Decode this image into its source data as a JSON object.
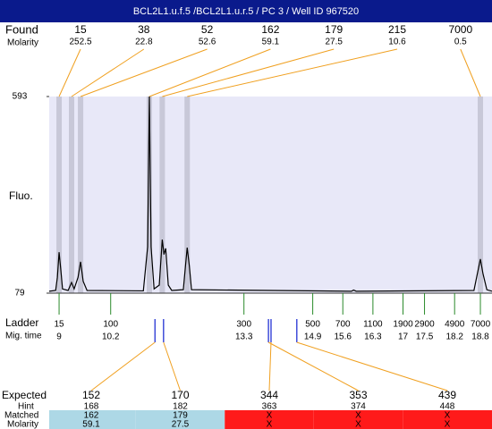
{
  "title": "BCL2L1.u.f.5 /BCL2L1.u.r.5 / PC 3 / Well ID 967520",
  "found": {
    "label": "Found",
    "molarity_label": "Molarity",
    "peaks": [
      {
        "size": 15,
        "molarity": 252.5,
        "time": 9.0
      },
      {
        "size": 38,
        "molarity": 22.8,
        "time": 9.29
      },
      {
        "size": 52,
        "molarity": 52.6,
        "time": 9.5
      },
      {
        "size": 162,
        "molarity": 59.1,
        "time": 11.1
      },
      {
        "size": 179,
        "molarity": 27.5,
        "time": 11.4
      },
      {
        "size": 215,
        "molarity": 10.6,
        "time": 11.98
      },
      {
        "size": 7000,
        "molarity": 0.5,
        "time": 18.8
      }
    ]
  },
  "chart_data": {
    "type": "line",
    "y_label": "Fluo.",
    "color": "#000000",
    "x": [
      8.77,
      8.92,
      8.96,
      9.0,
      9.04,
      9.08,
      9.21,
      9.29,
      9.35,
      9.44,
      9.5,
      9.56,
      9.65,
      10.96,
      11.06,
      11.1,
      11.14,
      11.21,
      11.33,
      11.4,
      11.44,
      11.48,
      11.54,
      11.62,
      11.89,
      11.94,
      11.98,
      12.03,
      12.08,
      15.8,
      15.85,
      15.91,
      18.65,
      18.73,
      18.8,
      18.86,
      18.95,
      19.07
    ],
    "values": [
      84,
      86,
      120,
      186,
      140,
      90,
      86,
      107,
      90,
      120,
      161,
      110,
      86,
      85,
      200,
      593,
      200,
      90,
      100,
      219,
      180,
      196,
      100,
      86,
      88,
      150,
      198,
      150,
      88,
      84,
      87,
      84,
      86,
      130,
      168,
      130,
      88,
      84
    ],
    "xlim": [
      8.77,
      19.07
    ],
    "ylim": [
      79,
      593
    ],
    "yticks": [
      79,
      593
    ]
  },
  "ladder": {
    "label": "Ladder",
    "time_label": "Mig. time",
    "peaks": [
      {
        "size": 15,
        "time": 9
      },
      {
        "size": 100,
        "time": 10.2
      },
      {
        "size": 300,
        "time": 13.3
      },
      {
        "size": 500,
        "time": 14.9
      },
      {
        "size": 700,
        "time": 15.6
      },
      {
        "size": 1100,
        "time": 16.3
      },
      {
        "size": 1900,
        "time": 17
      },
      {
        "size": 2900,
        "time": 17.5
      },
      {
        "size": 4900,
        "time": 18.2
      },
      {
        "size": 7000,
        "time": 18.8
      }
    ]
  },
  "expected": {
    "label": "Expected",
    "hint_label": "Hint",
    "matched_label": "Matched",
    "molarity_label": "Molarity",
    "peaks": [
      {
        "size": 152,
        "hint": 168,
        "matched": 162,
        "molarity": 59.1,
        "time": 11.23
      },
      {
        "size": 170,
        "hint": 182,
        "matched": 179,
        "molarity": 27.5,
        "time": 11.43
      },
      {
        "size": 344,
        "hint": 363,
        "matched": "X",
        "molarity": "X",
        "time": 13.93
      },
      {
        "size": 353,
        "hint": 374,
        "matched": "X",
        "molarity": "X",
        "time": 13.87
      },
      {
        "size": 439,
        "hint": 448,
        "matched": "X",
        "molarity": "X",
        "time": 14.53
      }
    ]
  }
}
